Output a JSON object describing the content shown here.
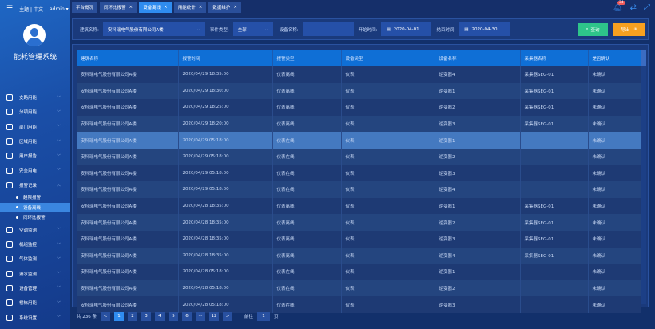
{
  "header": {
    "theme": "主题",
    "lang": "中文",
    "user": "admin",
    "notification_count": "34"
  },
  "sidebar": {
    "system_name": "能耗管理系统",
    "items": [
      {
        "label": "支路用能",
        "icon": "network-icon"
      },
      {
        "label": "分项用能",
        "icon": "target-icon"
      },
      {
        "label": "部门用能",
        "icon": "folder-icon"
      },
      {
        "label": "区域用能",
        "icon": "building-icon"
      },
      {
        "label": "用户报告",
        "icon": "edit-icon"
      },
      {
        "label": "安全用电",
        "icon": "shield-icon"
      },
      {
        "label": "报警记录",
        "icon": "document-icon",
        "expanded": true,
        "children": [
          {
            "label": "越限报警"
          },
          {
            "label": "设备离线",
            "active": true
          },
          {
            "label": "同环比报警"
          }
        ]
      },
      {
        "label": "空调监测",
        "icon": "ac-icon"
      },
      {
        "label": "机组监控",
        "icon": "unit-icon"
      },
      {
        "label": "气体监测",
        "icon": "location-icon"
      },
      {
        "label": "漏水监测",
        "icon": "water-icon"
      },
      {
        "label": "设备管理",
        "icon": "tools-icon"
      },
      {
        "label": "楼栋用能",
        "icon": "building2-icon"
      },
      {
        "label": "系统设置",
        "icon": "settings-icon"
      }
    ]
  },
  "tabs": [
    {
      "label": "平台概况",
      "closable": false
    },
    {
      "label": "同环比报警",
      "closable": true
    },
    {
      "label": "设备离线",
      "closable": true,
      "active": true
    },
    {
      "label": "用能统计",
      "closable": true
    },
    {
      "label": "数据维护",
      "closable": true
    }
  ],
  "filter": {
    "building_label": "建筑名称:",
    "building_value": "安科瑞电气股份有限公司A楼",
    "event_label": "事件类型:",
    "event_value": "全部",
    "device_label": "设备名称:",
    "device_value": "",
    "start_label": "开始时间:",
    "start_value": "2020-04-01",
    "end_label": "结束时间:",
    "end_value": "2020-04-30",
    "query_label": "查询",
    "export_label": "导出"
  },
  "table": {
    "columns": [
      "建筑名称",
      "报警时间",
      "报警类型",
      "设备类型",
      "设备名称",
      "采集器名称",
      "是否确认"
    ],
    "rows": [
      [
        "安科瑞电气股份有限公司A楼",
        "2020/04/29 18:35:00",
        "仪表离线",
        "仪表",
        "逆变器4",
        "采集器SEG-01",
        "未确认"
      ],
      [
        "安科瑞电气股份有限公司A楼",
        "2020/04/29 18:30:00",
        "仪表离线",
        "仪表",
        "逆变器1",
        "采集器SEG-01",
        "未确认"
      ],
      [
        "安科瑞电气股份有限公司A楼",
        "2020/04/29 18:25:00",
        "仪表离线",
        "仪表",
        "逆变器2",
        "采集器SEG-01",
        "未确认"
      ],
      [
        "安科瑞电气股份有限公司A楼",
        "2020/04/29 18:20:00",
        "仪表离线",
        "仪表",
        "逆变器3",
        "采集器SEG-01",
        "未确认"
      ],
      [
        "安科瑞电气股份有限公司A楼",
        "2020/04/29 05:18:00",
        "仪表在线",
        "仪表",
        "逆变器1",
        "",
        "未确认"
      ],
      [
        "安科瑞电气股份有限公司A楼",
        "2020/04/29 05:18:00",
        "仪表在线",
        "仪表",
        "逆变器2",
        "",
        "未确认"
      ],
      [
        "安科瑞电气股份有限公司A楼",
        "2020/04/29 05:18:00",
        "仪表在线",
        "仪表",
        "逆变器3",
        "",
        "未确认"
      ],
      [
        "安科瑞电气股份有限公司A楼",
        "2020/04/29 05:18:00",
        "仪表在线",
        "仪表",
        "逆变器4",
        "",
        "未确认"
      ],
      [
        "安科瑞电气股份有限公司A楼",
        "2020/04/28 18:35:00",
        "仪表离线",
        "仪表",
        "逆变器1",
        "采集器SEG-01",
        "未确认"
      ],
      [
        "安科瑞电气股份有限公司A楼",
        "2020/04/28 18:35:00",
        "仪表离线",
        "仪表",
        "逆变器2",
        "采集器SEG-01",
        "未确认"
      ],
      [
        "安科瑞电气股份有限公司A楼",
        "2020/04/28 18:35:00",
        "仪表离线",
        "仪表",
        "逆变器3",
        "采集器SEG-01",
        "未确认"
      ],
      [
        "安科瑞电气股份有限公司A楼",
        "2020/04/28 18:35:00",
        "仪表离线",
        "仪表",
        "逆变器4",
        "采集器SEG-01",
        "未确认"
      ],
      [
        "安科瑞电气股份有限公司A楼",
        "2020/04/28 05:18:00",
        "仪表在线",
        "仪表",
        "逆变器1",
        "",
        "未确认"
      ],
      [
        "安科瑞电气股份有限公司A楼",
        "2020/04/28 05:18:00",
        "仪表在线",
        "仪表",
        "逆变器2",
        "",
        "未确认"
      ],
      [
        "安科瑞电气股份有限公司A楼",
        "2020/04/28 05:18:00",
        "仪表在线",
        "仪表",
        "逆变器3",
        "",
        "未确认"
      ]
    ],
    "selected_row": 4
  },
  "pager": {
    "total": "共 236 条",
    "prev": "<",
    "next": ">",
    "pages": [
      "1",
      "2",
      "3",
      "4",
      "5",
      "6",
      "···",
      "12"
    ],
    "current": "1",
    "goto_label": "前往",
    "goto_value": "1",
    "page_unit": "页"
  }
}
